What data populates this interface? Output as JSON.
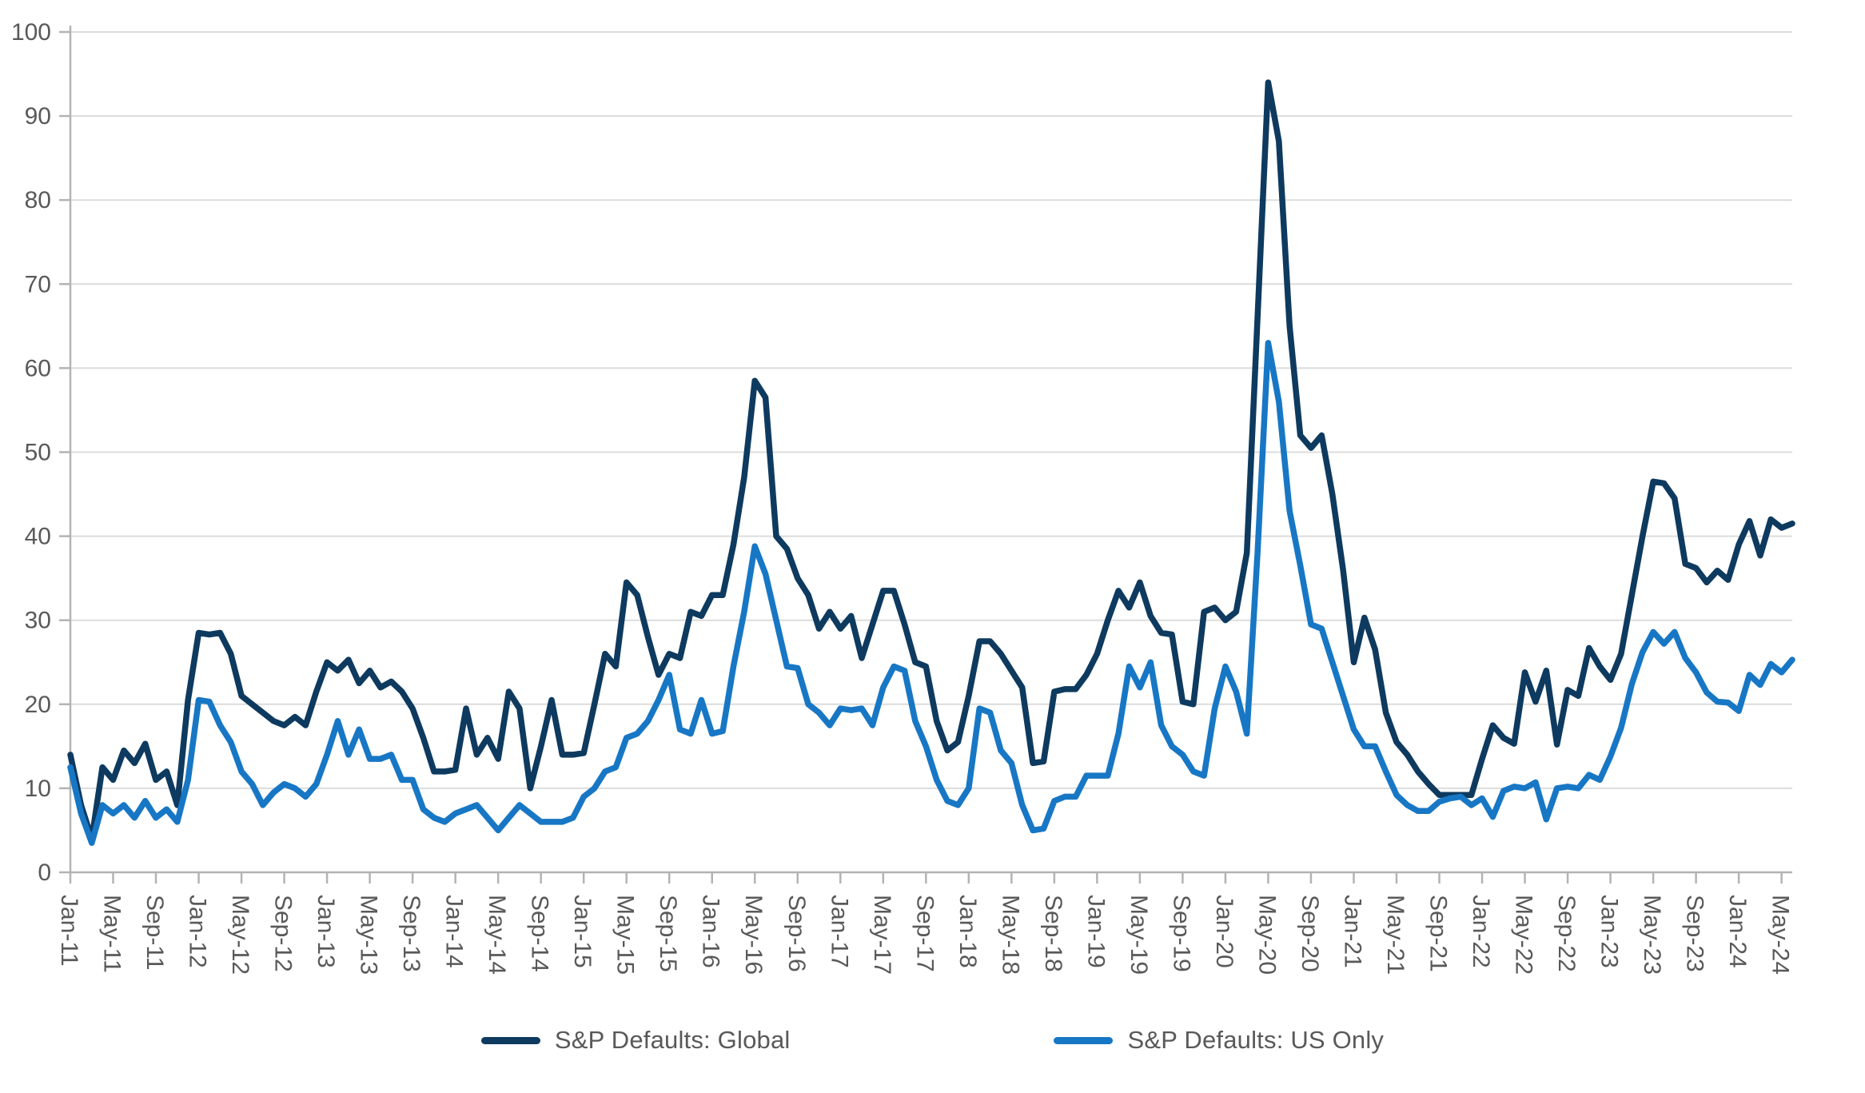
{
  "chart_data": {
    "type": "line",
    "title": "",
    "xlabel": "",
    "ylabel": "",
    "ylim": [
      0,
      100
    ],
    "y_tick_labels": [
      "0",
      "10",
      "20",
      "30",
      "40",
      "50",
      "60",
      "70",
      "80",
      "90",
      "100"
    ],
    "x_start": "Jan-2011",
    "x_end": "Jun-2024",
    "x_tick_step_months": 4,
    "x_tick_labels": [
      "Jan-11",
      "May-11",
      "Sep-11",
      "Jan-12",
      "May-12",
      "Sep-12",
      "Jan-13",
      "May-13",
      "Sep-13",
      "Jan-14",
      "May-14",
      "Sep-14",
      "Jan-15",
      "May-15",
      "Sep-15",
      "Jan-16",
      "May-16",
      "Sep-16",
      "Jan-17",
      "May-17",
      "Sep-17",
      "Jan-18",
      "May-18",
      "Sep-18",
      "Jan-19",
      "May-19",
      "Sep-19",
      "Jan-20",
      "May-20",
      "Sep-20",
      "Jan-21",
      "May-21",
      "Sep-21",
      "Jan-22",
      "May-22",
      "Sep-22",
      "Jan-23",
      "May-23",
      "Sep-23",
      "Jan-24",
      "May-24"
    ],
    "grid": "horizontal",
    "legend_position": "bottom-center",
    "series": [
      {
        "name": "S&P Defaults: Global",
        "color": "#0e3a5f",
        "values": [
          14,
          8,
          4,
          12.5,
          11,
          14.5,
          13,
          15.3,
          11,
          12,
          8,
          20.5,
          28.5,
          28.3,
          28.5,
          26,
          21,
          20,
          19,
          18,
          17.5,
          18.5,
          17.5,
          21.5,
          25,
          24,
          25.3,
          22.5,
          24,
          22,
          22.7,
          21.5,
          19.5,
          16,
          12,
          12,
          12.2,
          19.5,
          14,
          16,
          13.5,
          21.5,
          19.5,
          10,
          15,
          20.5,
          14,
          14,
          14.2,
          20,
          26,
          24.5,
          34.5,
          33,
          28,
          23.5,
          26,
          25.5,
          31,
          30.5,
          33,
          33,
          39,
          47,
          58.5,
          56.5,
          40,
          38.5,
          35,
          33,
          29,
          31,
          29,
          30.5,
          25.5,
          29.5,
          33.5,
          33.5,
          29.5,
          25,
          24.5,
          18,
          14.5,
          15.5,
          21,
          27.5,
          27.5,
          26,
          24,
          22,
          13,
          13.2,
          21.5,
          21.8,
          21.8,
          23.5,
          26,
          30,
          33.5,
          31.5,
          34.5,
          30.5,
          28.5,
          28.3,
          20.3,
          20,
          31,
          31.5,
          30,
          31,
          38,
          66,
          94,
          87,
          65,
          52,
          50.5,
          52,
          45,
          36,
          25,
          30.3,
          26.5,
          19,
          15.5,
          14,
          12,
          10.5,
          9.2,
          9.2,
          9.2,
          9.2,
          13.5,
          17.5,
          16,
          15.3,
          23.8,
          20.3,
          24,
          15.2,
          21.7,
          21,
          26.7,
          24.5,
          22.9,
          26,
          33,
          40,
          46.5,
          46.3,
          44.5,
          36.7,
          36.2,
          34.5,
          35.9,
          34.8,
          39,
          41.8,
          37.7,
          42,
          41,
          41.5
        ]
      },
      {
        "name": "S&P Defaults: US Only",
        "color": "#1777c5",
        "values": [
          12.5,
          7,
          3.5,
          8,
          7,
          8,
          6.5,
          8.5,
          6.5,
          7.5,
          6,
          11,
          20.5,
          20.3,
          17.5,
          15.5,
          12,
          10.5,
          8,
          9.5,
          10.5,
          10,
          9,
          10.5,
          14,
          18,
          14,
          17,
          13.5,
          13.5,
          14,
          11,
          11,
          7.5,
          6.5,
          6,
          7,
          7.5,
          8,
          6.5,
          5,
          6.5,
          8,
          7,
          6,
          6,
          6,
          6.5,
          9,
          10,
          12,
          12.5,
          16,
          16.5,
          18,
          20.5,
          23.5,
          17,
          16.5,
          20.5,
          16.5,
          16.8,
          24.5,
          31,
          38.8,
          35.5,
          30,
          24.5,
          24.3,
          20,
          19,
          17.5,
          19.5,
          19.3,
          19.5,
          17.5,
          22,
          24.5,
          24,
          18,
          15,
          11,
          8.5,
          8,
          10,
          19.5,
          19,
          14.5,
          13,
          8,
          5,
          5.2,
          8.5,
          9,
          9,
          11.5,
          11.5,
          11.5,
          16.5,
          24.5,
          22,
          25,
          17.5,
          15,
          14,
          12,
          11.5,
          19.5,
          24.5,
          21.5,
          16.5,
          38,
          63,
          56,
          43,
          36.5,
          29.5,
          29,
          25,
          21,
          17,
          15,
          15,
          12,
          9.2,
          8,
          7.3,
          7.3,
          8.4,
          8.8,
          9,
          8,
          8.8,
          6.6,
          9.7,
          10.2,
          10,
          10.7,
          6.3,
          10,
          10.2,
          10,
          11.6,
          11,
          13.8,
          17.2,
          22.4,
          26.2,
          28.6,
          27.2,
          28.6,
          25.5,
          23.8,
          21.4,
          20.3,
          20.2,
          19.2,
          23.5,
          22.3,
          24.8,
          23.8,
          25.3
        ]
      }
    ]
  },
  "legend": {
    "items": [
      {
        "label": "S&P Defaults: Global",
        "color": "#0e3a5f"
      },
      {
        "label": "S&P Defaults: US Only",
        "color": "#1777c5"
      }
    ]
  },
  "style": {
    "grid_color": "#dcdcdc",
    "axis_color": "#b3b3b3",
    "tick_text_color": "#595959",
    "background": "#ffffff"
  }
}
